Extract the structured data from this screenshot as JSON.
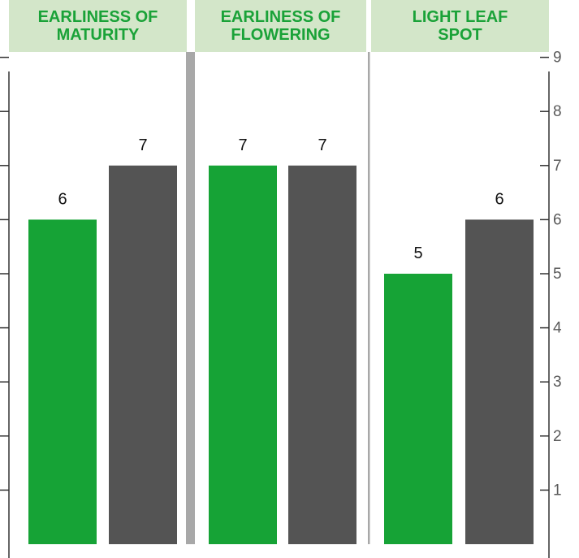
{
  "chart_data": {
    "type": "bar",
    "panels": [
      {
        "title": "EARLINESS OF\nMATURITY",
        "series": [
          {
            "color": "#16a336",
            "values": [
              6
            ]
          },
          {
            "color": "#545454",
            "values": [
              7
            ]
          }
        ]
      },
      {
        "title": "EARLINESS OF\nFLOWERING",
        "series": [
          {
            "color": "#16a336",
            "values": [
              7
            ]
          },
          {
            "color": "#545454",
            "values": [
              7
            ]
          }
        ]
      },
      {
        "title": "LIGHT LEAF\nSPOT",
        "series": [
          {
            "color": "#16a336",
            "values": [
              5
            ]
          },
          {
            "color": "#545454",
            "values": [
              6
            ]
          }
        ]
      }
    ],
    "data_labels": [
      "6",
      "7",
      "7",
      "7",
      "5",
      "6"
    ],
    "y_ticks": [
      "1",
      "2",
      "3",
      "4",
      "5",
      "6",
      "7",
      "8",
      "9"
    ],
    "ylim": [
      0,
      9.5
    ],
    "grid": false,
    "colors": {
      "header_bg": "#d3e6c9",
      "header_text": "#1aa238",
      "green": "#16a336",
      "grey": "#545454",
      "divider": "#a8a8a8"
    }
  }
}
